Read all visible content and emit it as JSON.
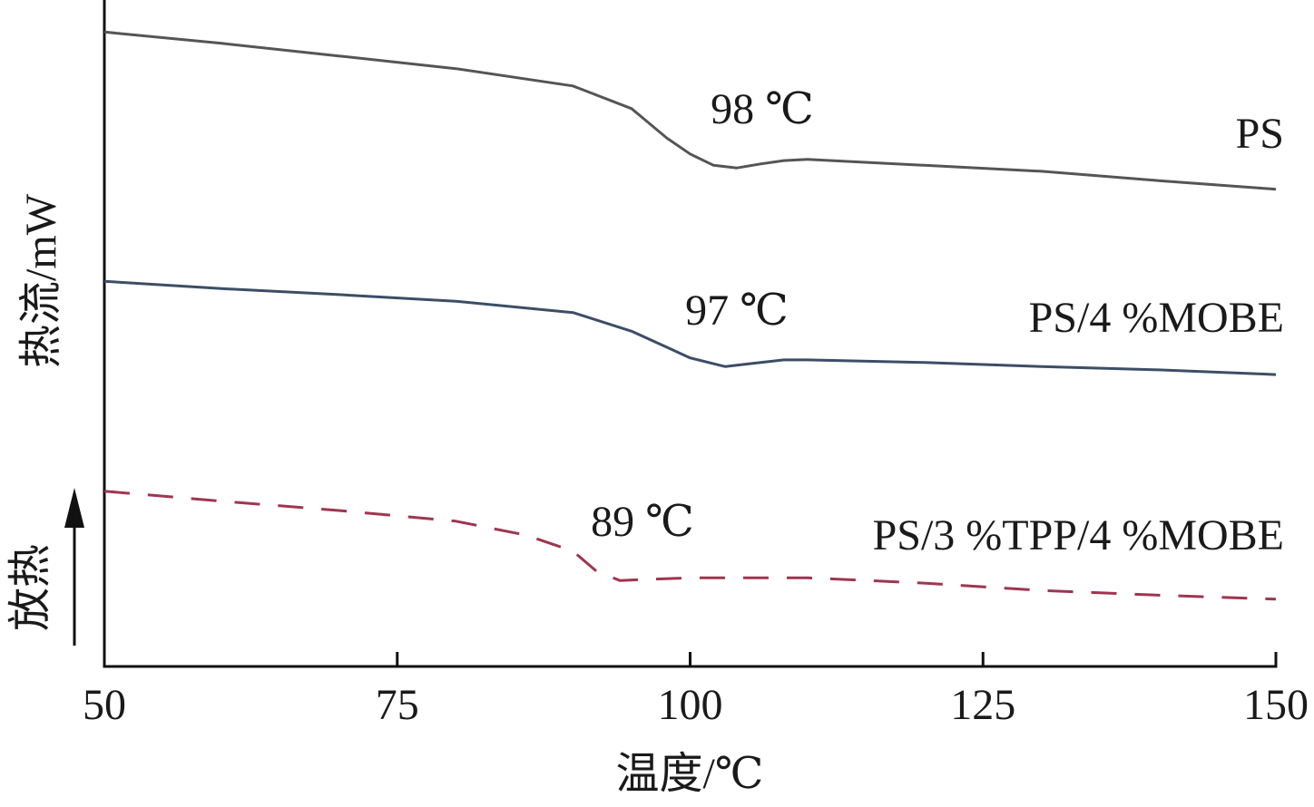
{
  "chart_data": {
    "type": "line",
    "xlabel": "温度/℃",
    "ylabel": "热流/mW",
    "exo_label": "放热",
    "xlim": [
      50,
      150
    ],
    "xticks": [
      50,
      75,
      100,
      125,
      150
    ],
    "ylim": [
      0,
      100
    ],
    "series": [
      {
        "name": "PS",
        "color": "#555555",
        "linestyle": "solid",
        "x": [
          50,
          60,
          70,
          80,
          90,
          95,
          98,
          100,
          102,
          104,
          106,
          108,
          110,
          120,
          130,
          140,
          150
        ],
        "values": [
          95.2,
          93.5,
          91.6,
          89.7,
          87.1,
          83.7,
          79.3,
          76.9,
          75.2,
          74.8,
          75.4,
          75.9,
          76.1,
          75.2,
          74.3,
          72.9,
          71.6
        ]
      },
      {
        "name": "PS/4 %MOBE",
        "color": "#3c4e66",
        "linestyle": "solid",
        "x": [
          50,
          60,
          70,
          80,
          90,
          95,
          98,
          100,
          103,
          105,
          108,
          110,
          120,
          130,
          140,
          150
        ],
        "values": [
          57.8,
          56.7,
          55.8,
          54.8,
          53.1,
          50.3,
          47.9,
          46.3,
          45.0,
          45.4,
          46.0,
          46.0,
          45.6,
          45.0,
          44.5,
          43.8
        ]
      },
      {
        "name": "PS/3 %TPP/4 %MOBE",
        "color": "#a03550",
        "linestyle": "dashed",
        "x": [
          50,
          60,
          70,
          80,
          86,
          90,
          92,
          94,
          100,
          110,
          120,
          130,
          140,
          150
        ],
        "values": [
          26.3,
          24.8,
          23.4,
          21.8,
          19.7,
          17.3,
          14.3,
          12.9,
          13.3,
          13.3,
          12.5,
          11.4,
          10.7,
          10.1
        ]
      }
    ],
    "annotations": [
      "98 ℃",
      "97 ℃",
      "89 ℃"
    ]
  }
}
